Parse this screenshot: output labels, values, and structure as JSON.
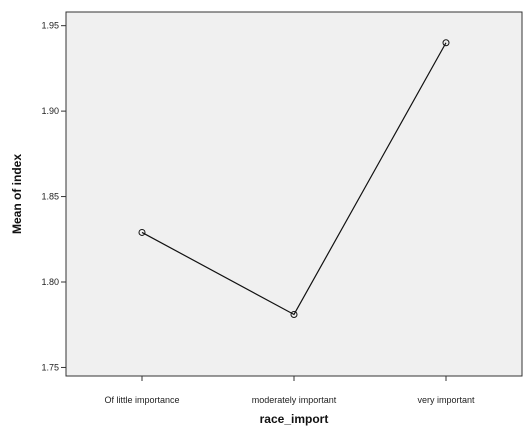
{
  "chart_data": {
    "type": "line",
    "title": "",
    "xlabel": "race_import",
    "ylabel": "Mean of index",
    "categories": [
      "Of little importance",
      "moderately important",
      "very important"
    ],
    "series": [
      {
        "values": [
          1.829,
          1.781,
          1.94
        ]
      }
    ],
    "ylim": [
      1.745,
      1.958
    ],
    "yticks": [
      1.75,
      1.8,
      1.85,
      1.9,
      1.95
    ],
    "ytick_labels": [
      "1.75",
      "1.80",
      "1.85",
      "1.90",
      "1.95"
    ],
    "grid": false,
    "legend": "none",
    "colors": {
      "plot_background": "#f0f0f0",
      "line": "#111111",
      "marker": "#111111"
    }
  }
}
